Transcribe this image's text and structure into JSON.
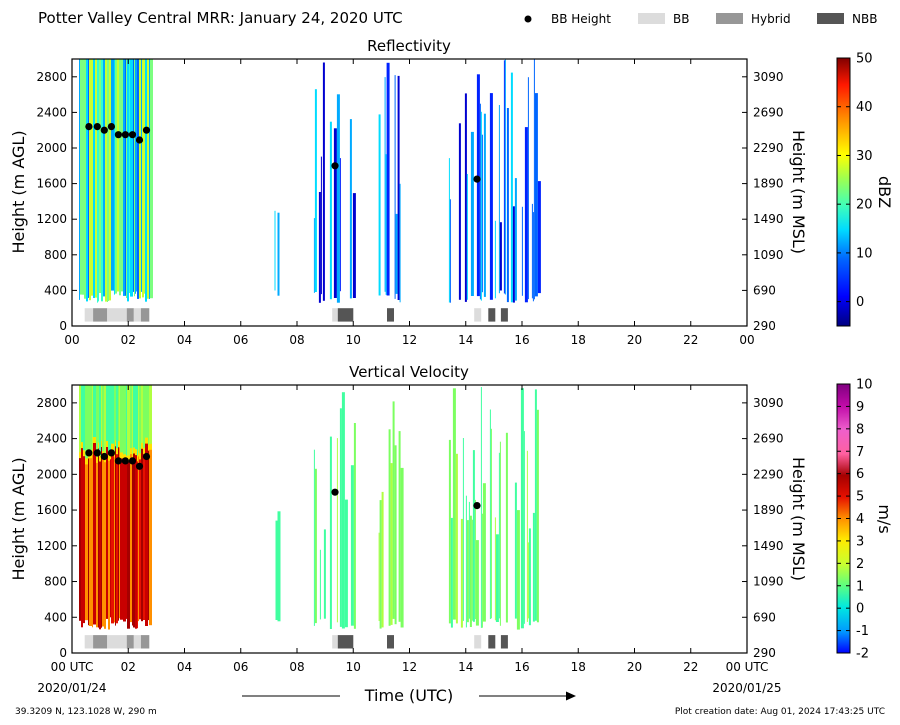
{
  "figure": {
    "title": "Potter Valley Central MRR:  January 24, 2020 UTC",
    "footer_left": "39.3209 N, 123.1028 W, 290 m",
    "footer_right": "Plot creation date: Aug 01, 2024 17:43:25 UTC",
    "time_axis_label": "Time (UTC)",
    "start_date": "2020/01/24",
    "end_date": "2020/01/25"
  },
  "legend": {
    "items": [
      {
        "label": "BB Height",
        "kind": "dot",
        "color": "#000000"
      },
      {
        "label": "BB",
        "kind": "swatch",
        "color": "#dcdcdc"
      },
      {
        "label": "Hybrid",
        "kind": "swatch",
        "color": "#979797"
      },
      {
        "label": "NBB",
        "kind": "swatch",
        "color": "#555555"
      }
    ]
  },
  "chart_data": [
    {
      "type": "heatmap",
      "title": "Reflectivity",
      "xlabel": "",
      "ylabel": "Height (m AGL)",
      "ylabel_right": "Height (m MSL)",
      "xlim": [
        0,
        24
      ],
      "ylim": [
        0,
        3000
      ],
      "x_ticks": [
        "00",
        "02",
        "04",
        "06",
        "08",
        "10",
        "12",
        "14",
        "16",
        "18",
        "20",
        "22",
        "00"
      ],
      "y_ticks": [
        "0",
        "400",
        "800",
        "1200",
        "1600",
        "2000",
        "2400",
        "2800"
      ],
      "y_ticks_right": [
        "290",
        "690",
        "1090",
        "1490",
        "1890",
        "2290",
        "2690",
        "3090"
      ],
      "colorbar": {
        "label": "dBZ",
        "min": -5,
        "max": 50,
        "ticks": [
          "50",
          "40",
          "30",
          "20",
          "10",
          "0"
        ],
        "tick_values": [
          50,
          40,
          30,
          20,
          10,
          0
        ]
      },
      "echo_periods_hours": [
        [
          0.25,
          2.8
        ],
        [
          7.2,
          7.35
        ],
        [
          8.6,
          9.0
        ],
        [
          9.1,
          10.05
        ],
        [
          10.9,
          11.7
        ],
        [
          13.4,
          16.6
        ]
      ],
      "bb_height": {
        "time_hours": [
          0.6,
          0.9,
          1.15,
          1.4,
          1.65,
          1.9,
          2.15,
          2.4,
          2.65,
          9.35,
          14.4
        ],
        "height_m": [
          2240,
          2240,
          2200,
          2240,
          2150,
          2150,
          2150,
          2090,
          2200,
          1800,
          1650
        ]
      },
      "classification": [
        {
          "start": 0.45,
          "end": 0.75,
          "class": "BB"
        },
        {
          "start": 0.75,
          "end": 1.25,
          "class": "Hybrid"
        },
        {
          "start": 1.25,
          "end": 1.95,
          "class": "BB"
        },
        {
          "start": 1.95,
          "end": 2.2,
          "class": "Hybrid"
        },
        {
          "start": 2.2,
          "end": 2.45,
          "class": "BB"
        },
        {
          "start": 2.45,
          "end": 2.75,
          "class": "Hybrid"
        },
        {
          "start": 9.25,
          "end": 9.45,
          "class": "BB"
        },
        {
          "start": 9.45,
          "end": 10.0,
          "class": "NBB"
        },
        {
          "start": 11.2,
          "end": 11.45,
          "class": "NBB"
        },
        {
          "start": 14.3,
          "end": 14.55,
          "class": "BB"
        },
        {
          "start": 14.8,
          "end": 15.05,
          "class": "NBB"
        },
        {
          "start": 15.25,
          "end": 15.5,
          "class": "NBB"
        }
      ]
    },
    {
      "type": "heatmap",
      "title": "Vertical Velocity",
      "xlabel": "Time (UTC)",
      "ylabel": "Height (m AGL)",
      "ylabel_right": "Height (m MSL)",
      "xlim": [
        0,
        24
      ],
      "ylim": [
        0,
        3000
      ],
      "x_ticks": [
        "00 UTC",
        "02",
        "04",
        "06",
        "08",
        "10",
        "12",
        "14",
        "16",
        "18",
        "20",
        "22",
        "00 UTC"
      ],
      "y_ticks": [
        "0",
        "400",
        "800",
        "1200",
        "1600",
        "2000",
        "2400",
        "2800"
      ],
      "y_ticks_right": [
        "290",
        "690",
        "1090",
        "1490",
        "1890",
        "2290",
        "2690",
        "3090"
      ],
      "colorbar": {
        "label": "m/s",
        "min": -2,
        "max": 10,
        "ticks": [
          "10",
          "9",
          "8",
          "7",
          "6",
          "5",
          "4",
          "3",
          "2",
          "1",
          "0",
          "-1",
          "-2"
        ],
        "tick_values": [
          10,
          9,
          8,
          7,
          6,
          5,
          4,
          3,
          2,
          1,
          0,
          -1,
          -2
        ]
      },
      "echo_periods_hours": [
        [
          0.25,
          2.8
        ],
        [
          7.2,
          7.35
        ],
        [
          8.6,
          9.0
        ],
        [
          9.1,
          10.05
        ],
        [
          10.9,
          11.7
        ],
        [
          13.4,
          16.6
        ]
      ],
      "bb_height": {
        "time_hours": [
          0.6,
          0.9,
          1.15,
          1.4,
          1.65,
          1.9,
          2.15,
          2.4,
          2.65,
          9.35,
          14.4
        ],
        "height_m": [
          2240,
          2240,
          2200,
          2240,
          2150,
          2150,
          2150,
          2090,
          2200,
          1800,
          1650
        ]
      },
      "classification": [
        {
          "start": 0.45,
          "end": 0.75,
          "class": "BB"
        },
        {
          "start": 0.75,
          "end": 1.25,
          "class": "Hybrid"
        },
        {
          "start": 1.25,
          "end": 1.95,
          "class": "BB"
        },
        {
          "start": 1.95,
          "end": 2.2,
          "class": "Hybrid"
        },
        {
          "start": 2.2,
          "end": 2.45,
          "class": "BB"
        },
        {
          "start": 2.45,
          "end": 2.75,
          "class": "Hybrid"
        },
        {
          "start": 9.25,
          "end": 9.45,
          "class": "BB"
        },
        {
          "start": 9.45,
          "end": 10.0,
          "class": "NBB"
        },
        {
          "start": 11.2,
          "end": 11.45,
          "class": "NBB"
        },
        {
          "start": 14.3,
          "end": 14.55,
          "class": "BB"
        },
        {
          "start": 14.8,
          "end": 15.05,
          "class": "NBB"
        },
        {
          "start": 15.25,
          "end": 15.5,
          "class": "NBB"
        }
      ]
    }
  ]
}
